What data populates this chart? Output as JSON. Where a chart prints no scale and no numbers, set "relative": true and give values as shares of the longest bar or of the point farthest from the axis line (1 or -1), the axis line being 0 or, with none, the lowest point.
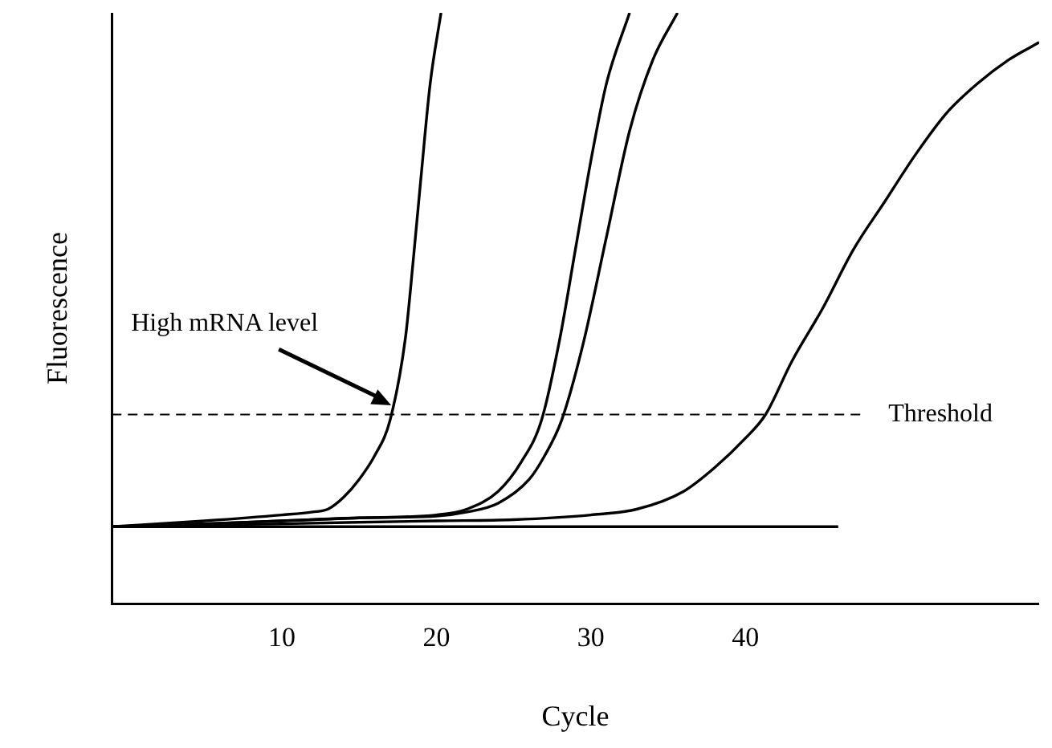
{
  "chart_data": {
    "type": "line",
    "xlabel": "Cycle",
    "ylabel": "Fluorescence",
    "relative": true,
    "xlim": [
      -1,
      59
    ],
    "xticks": [
      10,
      20,
      30,
      40
    ],
    "tick_labels": "x",
    "grid": false,
    "legend": false,
    "marker": "none",
    "line_style": "solid",
    "series": [
      {
        "color": "#000000",
        "x": [
          -1,
          5,
          10,
          12,
          13,
          14,
          15,
          16,
          17,
          18,
          18.5,
          19,
          19.6,
          20.3
        ],
        "values": [
          0.13,
          0.14,
          0.15,
          0.155,
          0.16,
          0.18,
          0.21,
          0.25,
          0.31,
          0.45,
          0.58,
          0.72,
          0.88,
          1
        ]
      },
      {
        "color": "#000000",
        "x": [
          -1,
          5,
          10,
          15,
          20,
          22,
          24,
          25.5,
          26.8,
          28,
          29,
          30,
          31,
          32.5
        ],
        "values": [
          0.13,
          0.135,
          0.14,
          0.145,
          0.15,
          0.16,
          0.19,
          0.24,
          0.31,
          0.45,
          0.6,
          0.75,
          0.88,
          1
        ]
      },
      {
        "color": "#000000",
        "x": [
          -1,
          5,
          10,
          15,
          20,
          22,
          24,
          26,
          27,
          28.1,
          29.5,
          31,
          32.5,
          34,
          35.6
        ],
        "values": [
          0.13,
          0.135,
          0.14,
          0.145,
          0.148,
          0.155,
          0.17,
          0.21,
          0.25,
          0.31,
          0.44,
          0.62,
          0.8,
          0.92,
          1
        ]
      },
      {
        "color": "#000000",
        "x": [
          -1,
          10,
          20,
          25,
          30,
          33,
          36,
          38,
          40,
          41.3,
          43,
          45,
          47,
          49,
          51,
          53,
          55,
          57,
          59
        ],
        "values": [
          0.13,
          0.135,
          0.14,
          0.142,
          0.15,
          0.16,
          0.19,
          0.23,
          0.28,
          0.32,
          0.41,
          0.5,
          0.6,
          0.68,
          0.76,
          0.83,
          0.88,
          0.92,
          0.95
        ]
      },
      {
        "color": "#000000",
        "x": [
          -1,
          46
        ],
        "values": [
          0.13,
          0.13
        ]
      }
    ],
    "ref_lines": [
      {
        "axis": "y",
        "value": 0.32,
        "label": "Threshold",
        "line_style": "dashed",
        "color": "#000000"
      }
    ],
    "annotations": [
      "High mRNA level"
    ]
  }
}
